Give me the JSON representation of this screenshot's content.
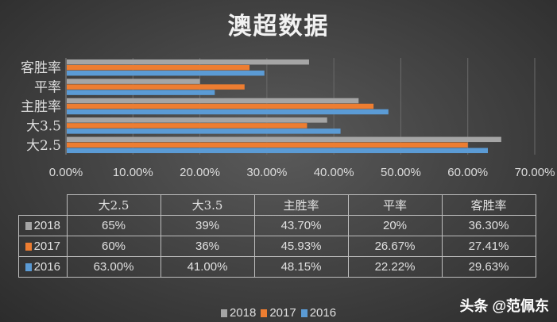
{
  "chart_data": {
    "type": "bar",
    "orientation": "horizontal",
    "title": "澳超数据",
    "categories": [
      "大2.5",
      "大3.5",
      "主胜率",
      "平率",
      "客胜率"
    ],
    "series": [
      {
        "name": "2018",
        "color": "#a5a5a5",
        "values": [
          65,
          39,
          43.7,
          20,
          36.3
        ],
        "labels": [
          "65%",
          "39%",
          "43.70%",
          "20%",
          "36.30%"
        ]
      },
      {
        "name": "2017",
        "color": "#ed7d31",
        "values": [
          60,
          36,
          45.93,
          26.67,
          27.41
        ],
        "labels": [
          "60%",
          "36%",
          "45.93%",
          "26.67%",
          "27.41%"
        ]
      },
      {
        "name": "2016",
        "color": "#5b9bd5",
        "values": [
          63,
          41,
          48.15,
          22.22,
          29.63
        ],
        "labels": [
          "63.00%",
          "41.00%",
          "48.15%",
          "22.22%",
          "29.63%"
        ]
      }
    ],
    "xlim": [
      0,
      70
    ],
    "xticks": [
      "0.00%",
      "10.00%",
      "20.00%",
      "30.00%",
      "40.00%",
      "50.00%",
      "60.00%",
      "70.00%"
    ],
    "grid": true,
    "legend": "bottom",
    "data_table": true
  },
  "watermark": "头条 @范佩东"
}
